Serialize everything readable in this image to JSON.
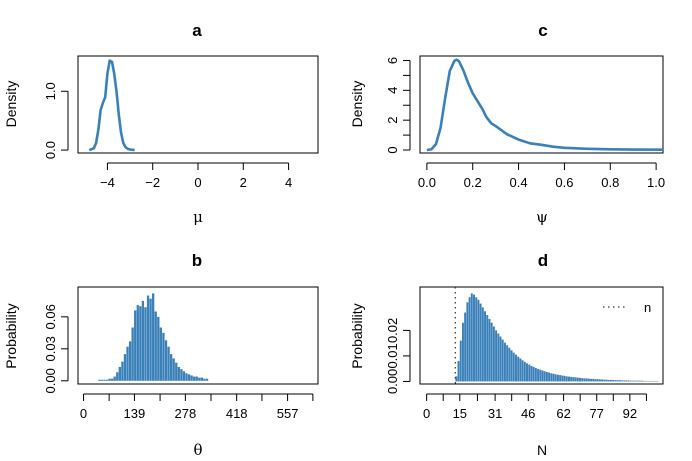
{
  "chart_data": [
    {
      "id": "a",
      "type": "line",
      "title": "a",
      "xlabel": "μ",
      "ylabel": "Density",
      "xlim": [
        -5.3,
        5.3
      ],
      "ylim": [
        -0.05,
        1.6
      ],
      "xticks": [
        -4,
        -2,
        0,
        2,
        4
      ],
      "xtick_labels": [
        "−4",
        "−2",
        "0",
        "2",
        "4"
      ],
      "yticks": [
        0.0,
        1.0
      ],
      "ytick_labels": [
        "0.0",
        "1.0"
      ],
      "color": "#3a80b9",
      "series": [
        {
          "x": [
            -4.8,
            -4.6,
            -4.5,
            -4.4,
            -4.3,
            -4.2,
            -4.1,
            -4.0,
            -3.9,
            -3.8,
            -3.7,
            -3.6,
            -3.5,
            -3.4,
            -3.3,
            -3.2,
            -3.1,
            -3.0,
            -2.8
          ],
          "y": [
            0.0,
            0.03,
            0.12,
            0.35,
            0.68,
            0.8,
            0.9,
            1.3,
            1.52,
            1.5,
            1.3,
            1.0,
            0.6,
            0.3,
            0.12,
            0.05,
            0.02,
            0.01,
            0.0
          ]
        }
      ]
    },
    {
      "id": "c",
      "type": "line",
      "title": "c",
      "xlabel": "ψ",
      "ylabel": "Density",
      "xlim": [
        -0.03,
        1.03
      ],
      "ylim": [
        -0.2,
        6.3
      ],
      "xticks": [
        0.0,
        0.2,
        0.4,
        0.6,
        0.8,
        1.0
      ],
      "xtick_labels": [
        "0.0",
        "0.2",
        "0.4",
        "0.6",
        "0.8",
        "1.0"
      ],
      "yticks": [
        0,
        2,
        4,
        6
      ],
      "ytick_labels": [
        "0",
        "2",
        "4",
        "6"
      ],
      "color": "#3a80b9",
      "series": [
        {
          "x": [
            0.0,
            0.02,
            0.04,
            0.06,
            0.08,
            0.1,
            0.12,
            0.13,
            0.14,
            0.16,
            0.18,
            0.2,
            0.22,
            0.24,
            0.26,
            0.28,
            0.3,
            0.35,
            0.4,
            0.45,
            0.5,
            0.55,
            0.6,
            0.7,
            0.8,
            0.9,
            1.03
          ],
          "y": [
            0.0,
            0.05,
            0.4,
            1.5,
            3.5,
            5.3,
            5.98,
            6.05,
            5.95,
            5.3,
            4.5,
            3.8,
            3.3,
            2.8,
            2.2,
            1.8,
            1.6,
            1.05,
            0.7,
            0.45,
            0.35,
            0.22,
            0.15,
            0.08,
            0.05,
            0.03,
            0.02
          ]
        }
      ]
    },
    {
      "id": "b",
      "type": "bar",
      "title": "b",
      "xlabel": "θ",
      "ylabel": "Probability",
      "xlim": [
        -15,
        640
      ],
      "ylim": [
        -0.003,
        0.088
      ],
      "xticks": [
        0,
        139,
        278,
        418,
        557
      ],
      "xtick_labels": [
        "0",
        "139",
        "278",
        "418",
        "557"
      ],
      "minor_xticks": [
        70,
        209,
        348,
        487,
        626
      ],
      "yticks": [
        0.0,
        0.03,
        0.06
      ],
      "ytick_labels": [
        "0.00",
        "0.03",
        "0.06"
      ],
      "color": "#3a80b9",
      "bin_start": 40,
      "bin_width": 7,
      "values": [
        0.001,
        0.001,
        0.001,
        0.001,
        0.002,
        0.002,
        0.004,
        0.008,
        0.013,
        0.018,
        0.025,
        0.032,
        0.037,
        0.05,
        0.066,
        0.071,
        0.07,
        0.075,
        0.069,
        0.08,
        0.077,
        0.082,
        0.065,
        0.06,
        0.05,
        0.045,
        0.038,
        0.032,
        0.025,
        0.021,
        0.017,
        0.013,
        0.011,
        0.009,
        0.007,
        0.006,
        0.005,
        0.004,
        0.004,
        0.003,
        0.003,
        0.002,
        0.002
      ]
    },
    {
      "id": "d",
      "type": "bar",
      "title": "d",
      "xlabel": "N",
      "ylabel": "Probability",
      "xlim": [
        -3,
        107
      ],
      "ylim": [
        -0.001,
        0.037
      ],
      "xticks": [
        0,
        15,
        31,
        46,
        62,
        77,
        92
      ],
      "xtick_labels": [
        "0",
        "15",
        "31",
        "46",
        "62",
        "77",
        "92"
      ],
      "minor_xticks": [
        7.5,
        23,
        38.5,
        54,
        69.5,
        84.5,
        99.5
      ],
      "yticks": [
        0.0,
        0.01,
        0.02
      ],
      "ytick_labels": [
        "0.00",
        "0.01",
        "0.02"
      ],
      "color": "#3a80b9",
      "bin_start": 13,
      "bin_width": 1,
      "values": [
        0.002,
        0.008,
        0.016,
        0.023,
        0.027,
        0.031,
        0.033,
        0.0345,
        0.034,
        0.033,
        0.032,
        0.0305,
        0.029,
        0.0275,
        0.026,
        0.0245,
        0.023,
        0.0215,
        0.02,
        0.0188,
        0.0176,
        0.0164,
        0.0152,
        0.0142,
        0.0132,
        0.0122,
        0.0113,
        0.0105,
        0.0097,
        0.009,
        0.0083,
        0.0077,
        0.0071,
        0.0066,
        0.0061,
        0.0057,
        0.0053,
        0.0049,
        0.0046,
        0.0043,
        0.004,
        0.0037,
        0.0035,
        0.0032,
        0.003,
        0.0028,
        0.0026,
        0.0025,
        0.0023,
        0.0022,
        0.002,
        0.0019,
        0.0018,
        0.0017,
        0.0016,
        0.0015,
        0.0014,
        0.0013,
        0.0012,
        0.0012,
        0.0011,
        0.001,
        0.001,
        0.0009,
        0.0009,
        0.0008,
        0.0008,
        0.0007,
        0.0007,
        0.0006,
        0.0006,
        0.0006,
        0.0005,
        0.0005,
        0.0005,
        0.0004,
        0.0004,
        0.0004,
        0.0004,
        0.0003,
        0.0003,
        0.0003,
        0.0003,
        0.0003,
        0.0003,
        0.0002,
        0.0002,
        0.0002,
        0.0002,
        0.0002,
        0.0002,
        0.0002
      ],
      "vline": {
        "x": 13,
        "style": "dotted"
      },
      "legend": {
        "label": "n",
        "style": "dotted",
        "position": "top-right"
      }
    }
  ]
}
